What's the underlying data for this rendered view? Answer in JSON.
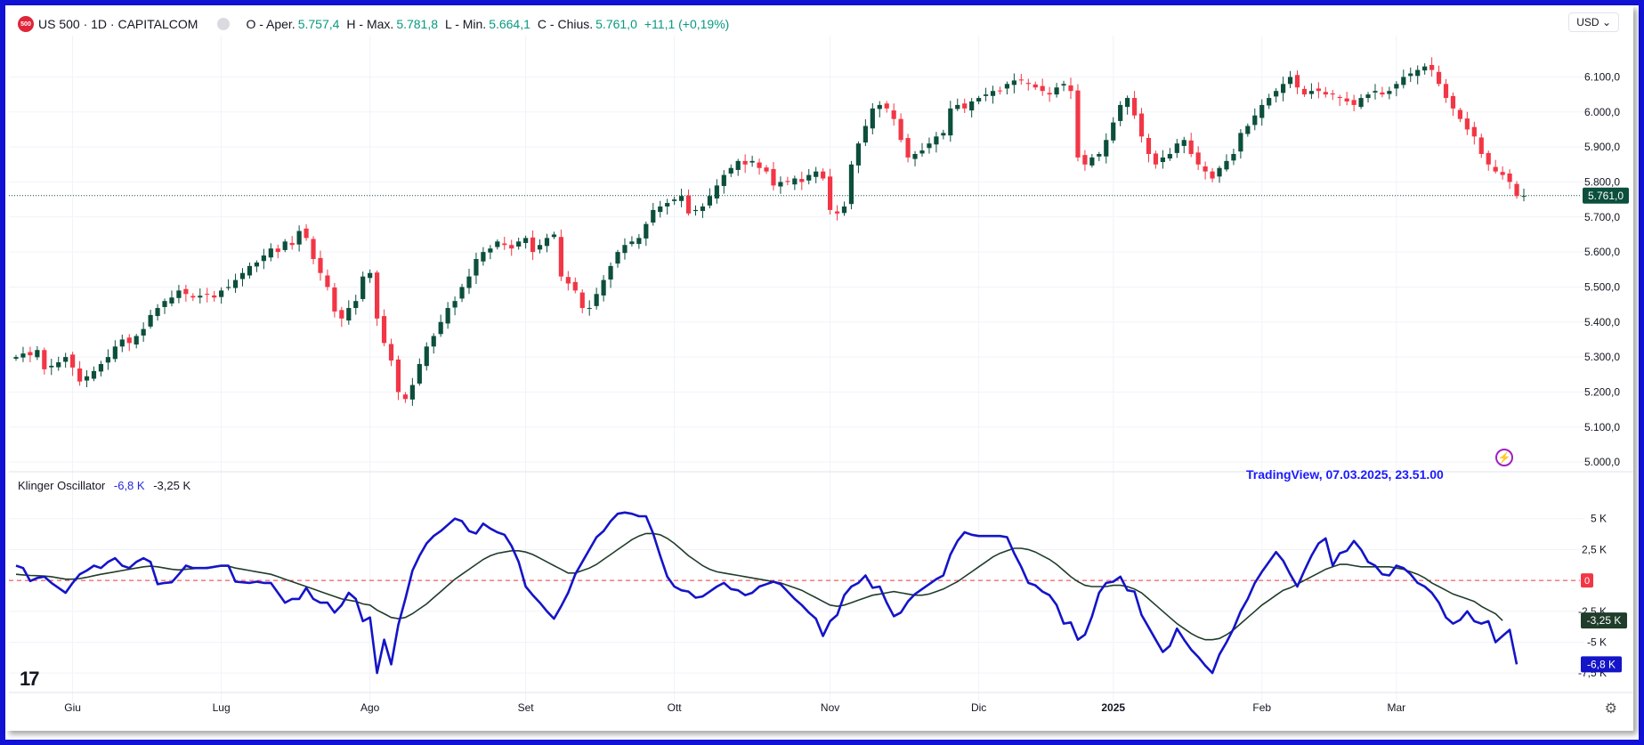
{
  "header": {
    "logo_text": "500",
    "symbol": "US 500 · 1D · CAPITALCOM",
    "open_label": "O - Aper.",
    "open_value": "5.757,4",
    "high_label": "H - Max.",
    "high_value": "5.781,8",
    "low_label": "L - Min.",
    "low_value": "5.664,1",
    "close_label": "C - Chius.",
    "close_value": "5.761,0",
    "change_value": "+11,1 (+0,19%)",
    "currency": "USD"
  },
  "indicator": {
    "name": "Klinger Oscillator",
    "value_blue": "-6,8 K",
    "value_black": "-3,25 K"
  },
  "watermark": "TradingView, 07.03.2025, 23.51.00",
  "icons": [
    "tradingview-logo-icon",
    "gear-icon",
    "lightning-icon",
    "chevron-down-icon"
  ],
  "colors": {
    "up": "#0b4f3c",
    "down": "#f23645",
    "kvo": "#1414c8",
    "signal": "#1f3d2a",
    "frame": "#1212d6",
    "last_price": "#0b4f3c",
    "zero_line": "#f23645"
  },
  "chart_data": [
    {
      "type": "candlestick",
      "title": "US 500 · 1D · CAPITALCOM",
      "x_labels": [
        "Giu",
        "Lug",
        "Ago",
        "Set",
        "Ott",
        "Nov",
        "Dic",
        "2025",
        "Feb",
        "Mar"
      ],
      "x_label_index": [
        8,
        29,
        50,
        72,
        93,
        115,
        136,
        155,
        176,
        195
      ],
      "y_ticks": [
        "6.100,0",
        "6.000,0",
        "5.900,0",
        "5.800,0",
        "5.700,0",
        "5.600,0",
        "5.500,0",
        "5.400,0",
        "5.300,0",
        "5.200,0",
        "5.100,0",
        "5.000,0"
      ],
      "y_tick_values": [
        6100,
        6000,
        5900,
        5800,
        5700,
        5600,
        5500,
        5400,
        5300,
        5200,
        5100,
        5000
      ],
      "ylim": [
        4985,
        6180
      ],
      "last_price_label": "5.761,0",
      "last_price": 5761,
      "closes": [
        5300,
        5310,
        5305,
        5320,
        5265,
        5275,
        5285,
        5300,
        5270,
        5230,
        5245,
        5260,
        5280,
        5300,
        5330,
        5350,
        5340,
        5360,
        5380,
        5420,
        5440,
        5460,
        5470,
        5490,
        5480,
        5470,
        5475,
        5480,
        5470,
        5490,
        5500,
        5520,
        5540,
        5560,
        5570,
        5590,
        5610,
        5600,
        5630,
        5620,
        5660,
        5640,
        5580,
        5540,
        5500,
        5430,
        5410,
        5440,
        5460,
        5530,
        5540,
        5410,
        5340,
        5290,
        5200,
        5180,
        5220,
        5280,
        5330,
        5360,
        5400,
        5440,
        5460,
        5500,
        5530,
        5580,
        5600,
        5610,
        5630,
        5620,
        5610,
        5630,
        5640,
        5600,
        5620,
        5640,
        5650,
        5530,
        5510,
        5490,
        5440,
        5440,
        5480,
        5520,
        5560,
        5600,
        5620,
        5630,
        5640,
        5680,
        5720,
        5730,
        5740,
        5750,
        5760,
        5710,
        5720,
        5730,
        5760,
        5790,
        5820,
        5840,
        5860,
        5850,
        5860,
        5840,
        5830,
        5790,
        5800,
        5800,
        5810,
        5800,
        5820,
        5830,
        5810,
        5720,
        5710,
        5730,
        5850,
        5910,
        5960,
        6010,
        6020,
        6010,
        5980,
        5920,
        5870,
        5880,
        5890,
        5910,
        5930,
        5940,
        6010,
        6020,
        6010,
        6030,
        6040,
        6050,
        6060,
        6060,
        6080,
        6090,
        6090,
        6080,
        6070,
        6060,
        6050,
        6070,
        6080,
        6060,
        5870,
        5850,
        5870,
        5880,
        5920,
        5970,
        6020,
        6040,
        5990,
        5930,
        5880,
        5850,
        5870,
        5880,
        5910,
        5920,
        5880,
        5850,
        5830,
        5810,
        5840,
        5860,
        5880,
        5940,
        5960,
        5990,
        6020,
        6040,
        6060,
        6080,
        6100,
        6070,
        6050,
        6060,
        6060,
        6050,
        6050,
        6040,
        6030,
        6020,
        6040,
        6050,
        6060,
        6050,
        6060,
        6080,
        6100,
        6110,
        6120,
        6130,
        6120,
        6080,
        6040,
        6010,
        5980,
        5950,
        5930,
        5880,
        5850,
        5830,
        5820,
        5800,
        5760,
        5760
      ],
      "indicator_ticks": [
        "5 K",
        "2,5 K",
        "0",
        "-2,5 K",
        "-5 K",
        "-7,5 K"
      ],
      "indicator_tick_values": [
        5000,
        2500,
        0,
        -2500,
        -5000,
        -7500
      ],
      "series": [
        {
          "name": "Klinger Oscillator",
          "values": [
            1200,
            1000,
            -50,
            200,
            300,
            -200,
            -600,
            -1000,
            -200,
            500,
            800,
            1200,
            1000,
            1500,
            1800,
            1200,
            1000,
            1500,
            1800,
            1500,
            -300,
            -200,
            -150,
            500,
            1200,
            1000,
            1000,
            1000,
            1100,
            1200,
            1200,
            -100,
            -150,
            -200,
            -100,
            -200,
            -200,
            -1000,
            -1800,
            -1500,
            -1500,
            -600,
            -1500,
            -1800,
            -1800,
            -2600,
            -2000,
            -1000,
            -1500,
            -3300,
            -3000,
            -7500,
            -4800,
            -6800,
            -3600,
            -1500,
            800,
            2000,
            3000,
            3600,
            4000,
            4500,
            5000,
            4800,
            4000,
            3800,
            4600,
            4200,
            3900,
            3700,
            2800,
            1500,
            -500,
            -1200,
            -1800,
            -2500,
            -3100,
            -2100,
            -1000,
            500,
            1500,
            2500,
            3500,
            4000,
            4800,
            5400,
            5500,
            5400,
            5200,
            5200,
            3800,
            2000,
            300,
            -500,
            -800,
            -900,
            -1400,
            -1300,
            -900,
            -500,
            -200,
            -700,
            -800,
            -1200,
            -1000,
            -500,
            -300,
            -100,
            -300,
            -900,
            -1500,
            -2000,
            -2600,
            -3100,
            -4500,
            -3300,
            -2800,
            -1200,
            -500,
            -200,
            400,
            -600,
            -500,
            -1800,
            -2900,
            -2600,
            -1700,
            -1100,
            -700,
            -300,
            100,
            400,
            2100,
            3200,
            3900,
            3700,
            3600,
            3600,
            3600,
            3600,
            3500,
            2200,
            1100,
            -200,
            -400,
            -900,
            -1200,
            -2000,
            -3500,
            -3400,
            -4800,
            -4400,
            -2900,
            -1000,
            -200,
            -100,
            300,
            -800,
            -900,
            -2800,
            -3800,
            -4800,
            -5800,
            -5300,
            -3900,
            -4800,
            -5600,
            -6200,
            -6900,
            -7500,
            -6000,
            -5000,
            -3900,
            -2500,
            -1500,
            -200,
            700,
            1500,
            2300,
            1600,
            500,
            -500,
            800,
            2000,
            3000,
            3400,
            1200,
            2200,
            2400,
            3200,
            2500,
            1500,
            1200,
            500,
            400,
            1200,
            1000,
            500,
            -200,
            -500,
            -1000,
            -1800,
            -3000,
            -3500,
            -3200,
            -2500,
            -3300,
            -3500,
            -3300,
            -5000,
            -4500,
            -4000,
            -6800
          ]
        },
        {
          "name": "Signal",
          "values": [
            500,
            450,
            400,
            380,
            350,
            300,
            200,
            100,
            100,
            150,
            250,
            380,
            500,
            600,
            700,
            800,
            900,
            1000,
            1100,
            1150,
            1100,
            1000,
            900,
            850,
            900,
            950,
            1000,
            1050,
            1100,
            1150,
            1150,
            1000,
            900,
            800,
            700,
            600,
            500,
            300,
            100,
            -100,
            -300,
            -500,
            -700,
            -900,
            -1100,
            -1300,
            -1500,
            -1600,
            -1700,
            -1900,
            -2000,
            -2400,
            -2700,
            -3000,
            -3100,
            -3000,
            -2700,
            -2300,
            -1900,
            -1400,
            -900,
            -400,
            100,
            500,
            900,
            1300,
            1700,
            2000,
            2200,
            2300,
            2400,
            2400,
            2300,
            2100,
            1800,
            1500,
            1200,
            900,
            600,
            600,
            800,
            1000,
            1300,
            1700,
            2100,
            2500,
            2900,
            3300,
            3600,
            3800,
            3800,
            3700,
            3400,
            3000,
            2500,
            2000,
            1600,
            1200,
            900,
            700,
            600,
            500,
            400,
            300,
            200,
            100,
            0,
            -100,
            -200,
            -400,
            -600,
            -800,
            -1100,
            -1400,
            -1700,
            -2000,
            -2100,
            -2000,
            -1800,
            -1600,
            -1400,
            -1200,
            -1100,
            -1000,
            -900,
            -1000,
            -1100,
            -1200,
            -1200,
            -1100,
            -900,
            -700,
            -400,
            -100,
            300,
            700,
            1100,
            1500,
            1900,
            2200,
            2400,
            2600,
            2600,
            2500,
            2300,
            2000,
            1700,
            1300,
            800,
            300,
            -100,
            -400,
            -500,
            -500,
            -500,
            -400,
            -400,
            -500,
            -700,
            -1000,
            -1500,
            -2000,
            -2500,
            -3000,
            -3500,
            -3900,
            -4300,
            -4600,
            -4800,
            -4800,
            -4700,
            -4400,
            -4000,
            -3500,
            -3000,
            -2500,
            -2000,
            -1600,
            -1200,
            -800,
            -600,
            -300,
            0,
            300,
            600,
            900,
            1100,
            1300,
            1300,
            1200,
            1100,
            1100,
            1100,
            1100,
            1100,
            1000,
            900,
            700,
            500,
            200,
            -200,
            -500,
            -800,
            -1100,
            -1300,
            -1500,
            -1700,
            -2100,
            -2400,
            -2700,
            -3250
          ]
        }
      ]
    }
  ]
}
